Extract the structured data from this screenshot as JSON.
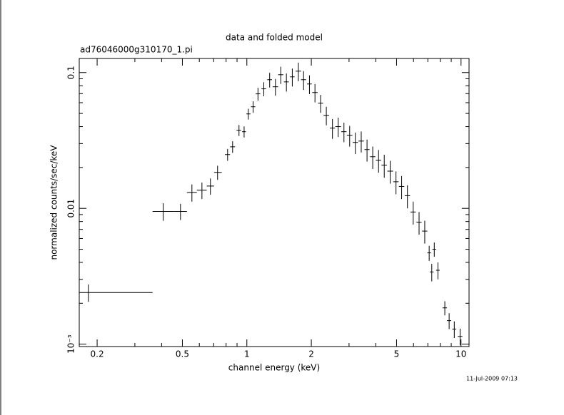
{
  "chart_data": {
    "type": "scatter",
    "title": "data and folded model",
    "subtitle": "ad76046000g310170_1.pi",
    "xlabel": "channel energy (keV)",
    "ylabel": "normalized counts/sec/keV",
    "footer": "11-Jul-2009 07:13",
    "xscale": "log",
    "yscale": "log",
    "xlim": [
      0.165,
      10.9
    ],
    "ylim": [
      0.00096,
      0.127
    ],
    "xticks": [
      0.2,
      0.5,
      1,
      2,
      5,
      10
    ],
    "yticks": [
      {
        "value": 0.001,
        "label": "10⁻³"
      },
      0.01,
      0.1
    ],
    "xminor": [
      0.3,
      0.4,
      0.6,
      0.7,
      0.8,
      0.9,
      3,
      4,
      6,
      7,
      8,
      9
    ],
    "yminor": [
      0.002,
      0.003,
      0.004,
      0.005,
      0.006,
      0.007,
      0.008,
      0.009,
      0.02,
      0.03,
      0.04,
      0.05,
      0.06,
      0.07,
      0.08,
      0.09
    ],
    "color": "#000000",
    "x": [
      0.182,
      0.407,
      0.49,
      0.554,
      0.617,
      0.676,
      0.73,
      0.813,
      0.858,
      0.919,
      0.971,
      1.016,
      1.07,
      1.127,
      1.2,
      1.278,
      1.36,
      1.44,
      1.53,
      1.63,
      1.74,
      1.84,
      1.96,
      2.08,
      2.21,
      2.35,
      2.51,
      2.67,
      2.84,
      3.02,
      3.21,
      3.42,
      3.64,
      3.87,
      4.12,
      4.38,
      4.67,
      4.97,
      5.28,
      5.62,
      5.98,
      6.37,
      6.77,
      7.1,
      7.5,
      7.3,
      7.8,
      8.4,
      8.8,
      9.3,
      9.9
    ],
    "xlo": [
      0.165,
      0.363,
      0.461,
      0.525,
      0.584,
      0.65,
      0.703,
      0.79,
      0.835,
      0.895,
      0.95,
      0.995,
      1.045,
      1.1,
      1.17,
      1.245,
      1.32,
      1.4,
      1.49,
      1.59,
      1.69,
      1.79,
      1.91,
      2.02,
      2.15,
      2.28,
      2.44,
      2.59,
      2.76,
      2.93,
      3.12,
      3.32,
      3.54,
      3.76,
      4.0,
      4.25,
      4.53,
      4.83,
      5.13,
      5.46,
      5.81,
      6.19,
      6.58,
      6.96,
      7.35,
      7.15,
      7.65,
      8.2,
      8.6,
      9.1,
      9.65
    ],
    "xhi": [
      0.363,
      0.461,
      0.525,
      0.584,
      0.65,
      0.703,
      0.764,
      0.835,
      0.88,
      0.94,
      0.99,
      1.04,
      1.095,
      1.155,
      1.23,
      1.31,
      1.4,
      1.48,
      1.57,
      1.67,
      1.79,
      1.89,
      2.01,
      2.14,
      2.27,
      2.42,
      2.58,
      2.75,
      2.92,
      3.11,
      3.3,
      3.52,
      3.74,
      3.98,
      4.24,
      4.51,
      4.81,
      5.11,
      5.43,
      5.78,
      6.15,
      6.55,
      6.96,
      7.24,
      7.65,
      7.45,
      7.95,
      8.6,
      9.0,
      9.5,
      10.15
    ],
    "values": [
      0.0024,
      0.0095,
      0.0095,
      0.0131,
      0.0136,
      0.0146,
      0.0184,
      0.0249,
      0.0284,
      0.0376,
      0.0367,
      0.0496,
      0.056,
      0.0697,
      0.0759,
      0.0886,
      0.0786,
      0.0964,
      0.0854,
      0.093,
      0.1024,
      0.0886,
      0.0824,
      0.0713,
      0.0595,
      0.0484,
      0.039,
      0.04,
      0.0367,
      0.0345,
      0.0306,
      0.0313,
      0.0271,
      0.024,
      0.0226,
      0.0208,
      0.0188,
      0.0157,
      0.0145,
      0.0124,
      0.0094,
      0.0079,
      0.0068,
      0.0047,
      0.005,
      0.0034,
      0.0035,
      0.00185,
      0.00149,
      0.00129,
      0.00114
    ],
    "yerr": [
      0.00035,
      0.0014,
      0.0013,
      0.0019,
      0.0019,
      0.002,
      0.0022,
      0.0025,
      0.0028,
      0.0035,
      0.0034,
      0.0045,
      0.0055,
      0.0075,
      0.009,
      0.011,
      0.011,
      0.014,
      0.013,
      0.014,
      0.016,
      0.014,
      0.013,
      0.011,
      0.009,
      0.0075,
      0.0065,
      0.0065,
      0.006,
      0.006,
      0.0055,
      0.0055,
      0.005,
      0.0045,
      0.0043,
      0.004,
      0.0036,
      0.003,
      0.0028,
      0.0024,
      0.0018,
      0.0015,
      0.0013,
      0.0006,
      0.0006,
      0.0005,
      0.0005,
      0.00022,
      0.0002,
      0.00018,
      0.00016
    ]
  }
}
